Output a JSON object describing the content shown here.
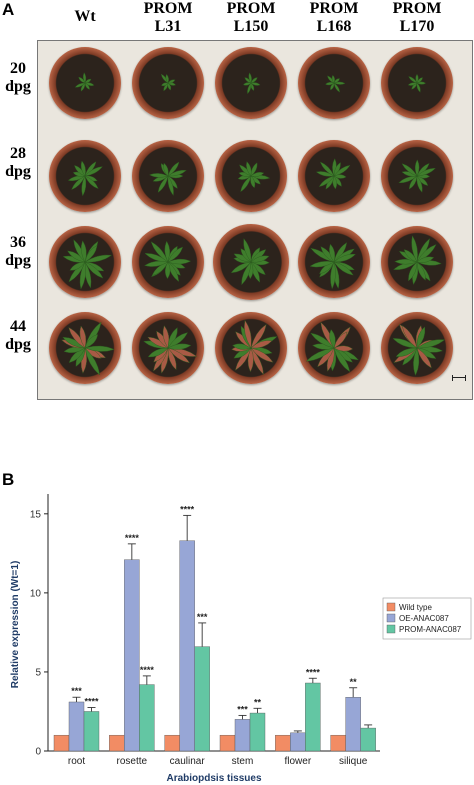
{
  "panel_a": {
    "label": "A",
    "columns": [
      {
        "lines": [
          "Wt"
        ]
      },
      {
        "lines": [
          "PROM",
          "L31"
        ]
      },
      {
        "lines": [
          "PROM",
          "L150"
        ]
      },
      {
        "lines": [
          "PROM",
          "L168"
        ]
      },
      {
        "lines": [
          "PROM",
          "L170"
        ]
      }
    ],
    "rows": [
      {
        "lines": [
          "20",
          "dpg"
        ],
        "stage": 0.18
      },
      {
        "lines": [
          "28",
          "dpg"
        ],
        "stage": 0.55
      },
      {
        "lines": [
          "36",
          "dpg"
        ],
        "stage": 0.85
      },
      {
        "lines": [
          "44",
          "dpg"
        ],
        "stage": 1.0
      }
    ],
    "colors": {
      "pot": "#b56143",
      "soil": "#2c231c",
      "leaf": "#3f7d2c",
      "senescent_leaf": "#a85a45"
    }
  },
  "panel_b": {
    "label": "B"
  },
  "chart_data": {
    "type": "bar",
    "title": "",
    "xlabel": "Arabiopdsis tissues",
    "ylabel": "Relative expression (Wt=1)",
    "ylim": [
      0,
      16
    ],
    "yticks": [
      0,
      5,
      10,
      15
    ],
    "grid": false,
    "legend_position": "right",
    "categories": [
      "root",
      "rosette",
      "caulinar",
      "stem",
      "flower",
      "silique"
    ],
    "series": [
      {
        "name": "Wild type",
        "color": "#f28c64",
        "values": [
          1.0,
          1.0,
          1.0,
          1.0,
          1.0,
          1.0
        ],
        "errors": [
          0,
          0,
          0,
          0,
          0,
          0
        ],
        "annotations": [
          "",
          "",
          "",
          "",
          "",
          ""
        ]
      },
      {
        "name": "OE-ANAC087",
        "color": "#97a6d6",
        "values": [
          3.1,
          12.1,
          13.3,
          2.0,
          1.15,
          3.4
        ],
        "errors": [
          0.3,
          1.0,
          1.6,
          0.25,
          0.12,
          0.6
        ],
        "annotations": [
          "***",
          "****",
          "****",
          "***",
          "",
          "**"
        ]
      },
      {
        "name": "PROM-ANAC087",
        "color": "#63c6a3",
        "values": [
          2.5,
          4.2,
          6.6,
          2.4,
          4.3,
          1.45
        ],
        "errors": [
          0.25,
          0.55,
          1.5,
          0.3,
          0.3,
          0.2
        ],
        "annotations": [
          "****",
          "****",
          "***",
          "**",
          "****",
          ""
        ]
      }
    ]
  }
}
